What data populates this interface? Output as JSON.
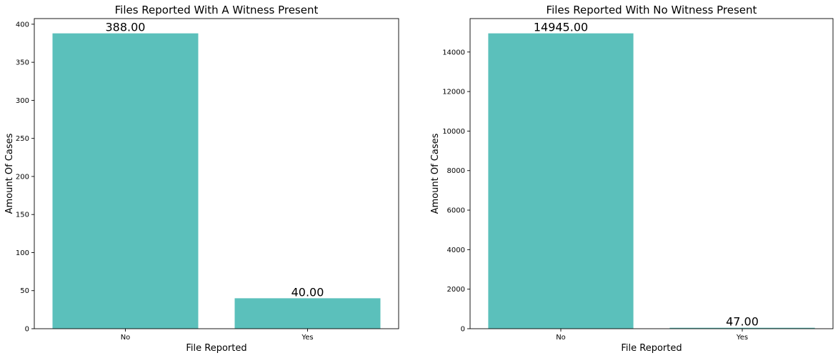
{
  "chart_data": [
    {
      "type": "bar",
      "title": "Files Reported With A Witness Present",
      "xlabel": "File Reported",
      "ylabel": "Amount Of Cases",
      "categories": [
        "No",
        "Yes"
      ],
      "values": [
        388,
        40
      ],
      "data_labels": [
        "388.00",
        "40.00"
      ],
      "ylim": [
        0,
        407.4
      ],
      "yticks": [
        0,
        50,
        100,
        150,
        200,
        250,
        300,
        350,
        400
      ],
      "bar_color": "#5bc0bb",
      "grid": false,
      "legend": "none"
    },
    {
      "type": "bar",
      "title": "Files Reported With No Witness Present",
      "xlabel": "File Reported",
      "ylabel": "Amount Of Cases",
      "categories": [
        "No",
        "Yes"
      ],
      "values": [
        14945,
        47
      ],
      "data_labels": [
        "14945.00",
        "47.00"
      ],
      "ylim": [
        0,
        15692
      ],
      "yticks": [
        0,
        2000,
        4000,
        6000,
        8000,
        10000,
        12000,
        14000
      ],
      "bar_color": "#5bc0bb",
      "grid": false,
      "legend": "none"
    }
  ]
}
